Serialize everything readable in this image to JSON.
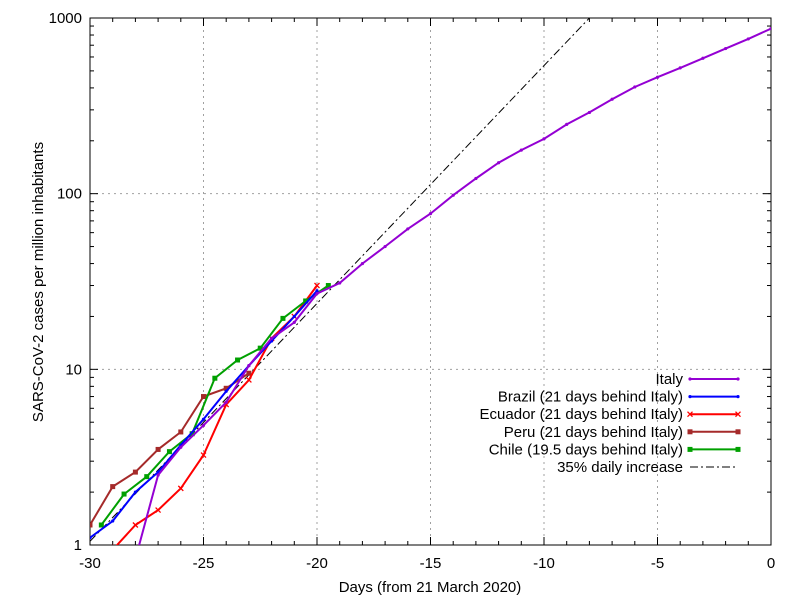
{
  "chart_data": {
    "type": "line",
    "title": "",
    "xlabel": "Days (from 21 March 2020)",
    "ylabel": "SARS-CoV-2 cases per million inhabitants",
    "xlim": [
      -30,
      0
    ],
    "ylim": [
      1,
      1000
    ],
    "yscale": "log",
    "grid": true,
    "legend_position": "bottom-right",
    "x_ticks": [
      "-30",
      "-25",
      "-20",
      "-15",
      "-10",
      "-5",
      "0"
    ],
    "x_tick_values": [
      -30,
      -25,
      -20,
      -15,
      -10,
      -5,
      0
    ],
    "y_ticks": [
      "1",
      "10",
      "100",
      "1000"
    ],
    "y_tick_values": [
      1,
      10,
      100,
      1000
    ],
    "series": [
      {
        "name": "Italy",
        "color": "#9400d3",
        "marker": "dot",
        "dash": "",
        "x": [
          -28.3,
          -27,
          -26,
          -25,
          -24,
          -23,
          -22,
          -21,
          -20,
          -19,
          -18,
          -17,
          -16,
          -15,
          -14,
          -13,
          -12,
          -11,
          -10,
          -9,
          -8,
          -7,
          -6,
          -5,
          -4,
          -3,
          -2,
          -1,
          0
        ],
        "y": [
          0.6,
          2.5,
          3.6,
          4.8,
          6.5,
          10.5,
          15.0,
          18.5,
          27.0,
          31.0,
          40.0,
          50.0,
          63.0,
          77.0,
          98.0,
          122.0,
          150.0,
          177.0,
          205.0,
          248.0,
          290.0,
          345.0,
          405.0,
          460.0,
          520.0,
          590.0,
          670.0,
          760.0,
          870.0
        ]
      },
      {
        "name": "Brazil (21 days behind Italy)",
        "color": "#0000ff",
        "marker": "dot",
        "dash": "",
        "x": [
          -30,
          -29,
          -28,
          -27,
          -26,
          -25,
          -24,
          -23,
          -22,
          -21,
          -20
        ],
        "y": [
          1.1,
          1.37,
          2.0,
          2.6,
          3.7,
          5.2,
          7.5,
          10.5,
          14.5,
          20.0,
          28.0
        ]
      },
      {
        "name": "Ecuador (21 days behind Italy)",
        "color": "#ff0000",
        "marker": "cross",
        "dash": "",
        "x": [
          -28.9,
          -28,
          -27,
          -26,
          -25,
          -24,
          -23,
          -22,
          -21,
          -20
        ],
        "y": [
          0.97,
          1.3,
          1.58,
          2.1,
          3.25,
          6.3,
          8.7,
          15.0,
          20.0,
          30.0
        ]
      },
      {
        "name": "Peru (21 days behind Italy)",
        "color": "#a52a2a",
        "marker": "square",
        "dash": "",
        "x": [
          -30,
          -29,
          -28,
          -27,
          -26,
          -25,
          -24,
          -23
        ],
        "y": [
          1.3,
          2.15,
          2.6,
          3.5,
          4.4,
          7.0,
          7.8,
          9.5
        ]
      },
      {
        "name": "Chile (19.5 days behind Italy)",
        "color": "#00a000",
        "marker": "square",
        "dash": "",
        "x": [
          -29.5,
          -28.5,
          -27.5,
          -26.5,
          -25.5,
          -24.5,
          -23.5,
          -22.5,
          -21.5,
          -20.5,
          -19.5
        ],
        "y": [
          1.3,
          1.95,
          2.45,
          3.4,
          4.3,
          8.9,
          11.3,
          13.2,
          19.5,
          24.5,
          30.0
        ]
      },
      {
        "name": "35% daily increase",
        "color": "#000000",
        "marker": "none",
        "dash": "8,3,2,3",
        "x": [
          -30,
          -8
        ],
        "y": [
          1.05,
          1000
        ]
      }
    ]
  }
}
